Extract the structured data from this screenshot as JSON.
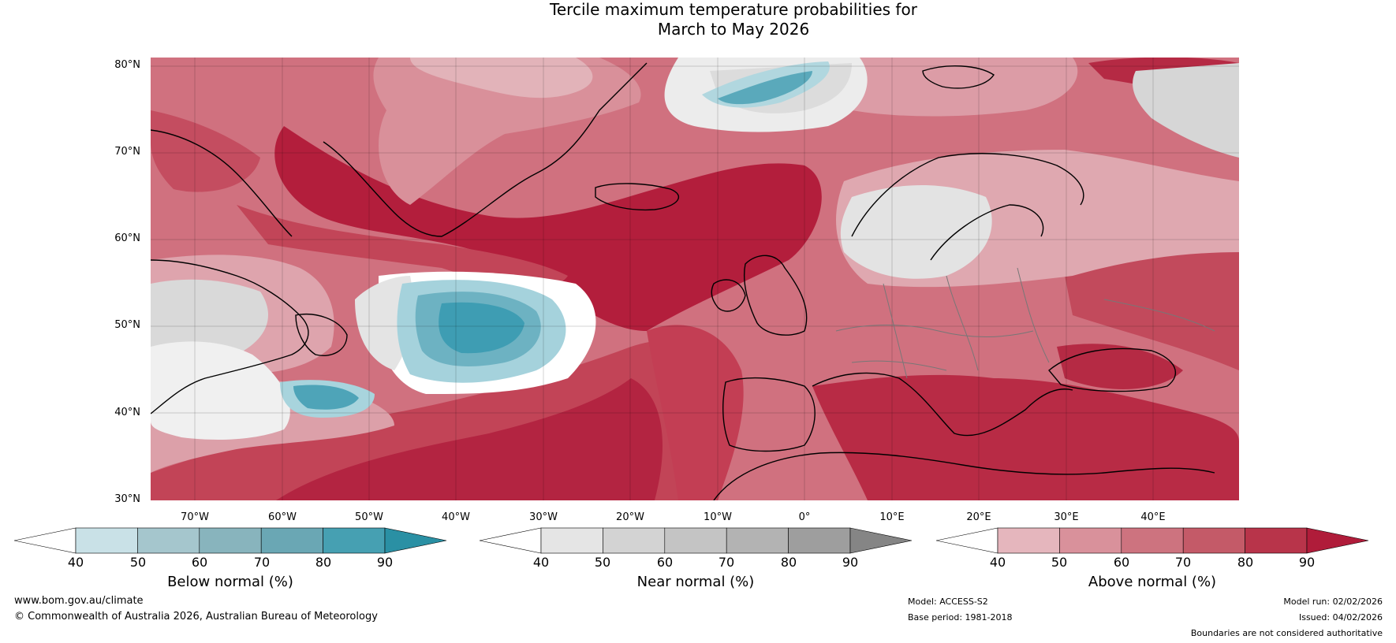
{
  "title": {
    "line1": "Tercile maximum temperature probabilities for",
    "line2": "March to May 2026"
  },
  "map": {
    "lat_labels": [
      "80°N",
      "70°N",
      "60°N",
      "50°N",
      "40°N",
      "30°N"
    ],
    "lon_labels": [
      "70°W",
      "60°W",
      "50°W",
      "40°W",
      "30°W",
      "20°W",
      "10°W",
      "0°",
      "10°E",
      "20°E",
      "30°E",
      "40°E"
    ]
  },
  "colorbars": [
    {
      "name": "below",
      "title": "Below normal (%)",
      "ticks": [
        "40",
        "50",
        "60",
        "70",
        "80",
        "90"
      ],
      "colors": [
        "#ffffff",
        "#c9e1e7",
        "#a5c6cd",
        "#88b4bd",
        "#6aa7b4",
        "#46a0b2",
        "#2a90a4"
      ]
    },
    {
      "name": "near",
      "title": "Near normal (%)",
      "ticks": [
        "40",
        "50",
        "60",
        "70",
        "80",
        "90"
      ],
      "colors": [
        "#ffffff",
        "#e5e5e5",
        "#d3d3d3",
        "#c4c4c4",
        "#b3b3b3",
        "#9e9e9e",
        "#858585"
      ]
    },
    {
      "name": "above",
      "title": "Above normal (%)",
      "ticks": [
        "40",
        "50",
        "60",
        "70",
        "80",
        "90"
      ],
      "colors": [
        "#ffffff",
        "#e5b6bd",
        "#d9919b",
        "#cd737f",
        "#c45a68",
        "#b8344a",
        "#b01c3a"
      ]
    }
  ],
  "footer": {
    "website": "www.bom.gov.au/climate",
    "copyright": "© Commonwealth of Australia 2026, Australian Bureau of Meteorology",
    "model": "Model: ACCESS-S2",
    "base_period": "Base period: 1981-2018",
    "model_run": "Model run: 02/02/2026",
    "issued": "Issued: 04/02/2026",
    "disclaimer": "Boundaries are not considered authoritative"
  },
  "palette": {
    "above_90": "#b01c3a",
    "above_80": "#bf3b51",
    "above_70": "#c95d6d",
    "above_60": "#d58891",
    "above_50": "#e2b0b7",
    "white": "#ffffff",
    "near_1": "#e6e6e6",
    "near_2": "#d0d0d0",
    "below_1": "#a9d3dc",
    "below_2": "#6fb3c3",
    "below_3": "#3f9cb2",
    "below_4": "#2a8ea4"
  }
}
